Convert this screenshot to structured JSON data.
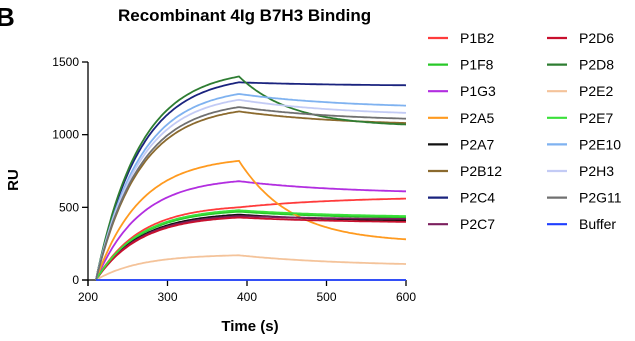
{
  "panel_letter": "B",
  "chart_data": {
    "type": "line",
    "title": "Recombinant 4Ig B7H3 Binding",
    "xlabel": "Time (s)",
    "ylabel": "RU",
    "xlim": [
      200,
      600
    ],
    "ylim": [
      0,
      1500
    ],
    "xticks": [
      200,
      300,
      400,
      500,
      600
    ],
    "yticks": [
      0,
      500,
      1000,
      1500
    ],
    "association_start": 210,
    "dissociation_start": 390,
    "legend_placement": "right",
    "series": [
      {
        "name": "P1B2",
        "color": "#ff3b3b",
        "peak": 500,
        "end": 560
      },
      {
        "name": "P1F8",
        "color": "#28c828",
        "peak": 470,
        "end": 430
      },
      {
        "name": "P1G3",
        "color": "#b22ee0",
        "peak": 680,
        "end": 610
      },
      {
        "name": "P2A5",
        "color": "#ff9a1f",
        "peak": 820,
        "end": 280
      },
      {
        "name": "P2A7",
        "color": "#111111",
        "peak": 450,
        "end": 410
      },
      {
        "name": "P2B12",
        "color": "#8b6a2e",
        "peak": 1160,
        "end": 1080
      },
      {
        "name": "P2C4",
        "color": "#1a237e",
        "peak": 1360,
        "end": 1340
      },
      {
        "name": "P2C7",
        "color": "#7b1f5e",
        "peak": 440,
        "end": 420
      },
      {
        "name": "P2D6",
        "color": "#c8102e",
        "peak": 430,
        "end": 400
      },
      {
        "name": "P2D8",
        "color": "#2e7d32",
        "peak": 1400,
        "end": 1070
      },
      {
        "name": "P2E2",
        "color": "#f4c39a",
        "peak": 170,
        "end": 110
      },
      {
        "name": "P2E7",
        "color": "#3ae03a",
        "peak": 480,
        "end": 440
      },
      {
        "name": "P2E10",
        "color": "#7fb2f0",
        "peak": 1280,
        "end": 1200
      },
      {
        "name": "P2H3",
        "color": "#c3cbf5",
        "peak": 1240,
        "end": 1150
      },
      {
        "name": "P2G11",
        "color": "#707070",
        "peak": 1190,
        "end": 1110
      },
      {
        "name": "Buffer",
        "color": "#1f3fff",
        "peak": 0,
        "end": 0
      }
    ]
  }
}
